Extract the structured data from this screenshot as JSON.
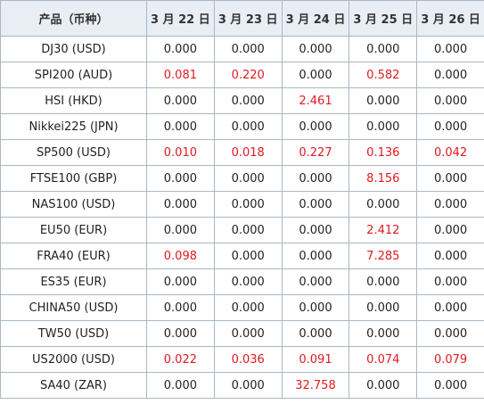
{
  "header": {
    "product": "产品（币种）",
    "dates": [
      "3 月 22 日",
      "3 月 23 日",
      "3 月 24 日",
      "3 月 25 日",
      "3 月 26 日"
    ]
  },
  "rows": [
    {
      "product": "DJ30 (USD)",
      "values": [
        "0.000",
        "0.000",
        "0.000",
        "0.000",
        "0.000"
      ]
    },
    {
      "product": "SPI200 (AUD)",
      "values": [
        "0.081",
        "0.220",
        "0.000",
        "0.582",
        "0.000"
      ]
    },
    {
      "product": "HSI (HKD)",
      "values": [
        "0.000",
        "0.000",
        "2.461",
        "0.000",
        "0.000"
      ]
    },
    {
      "product": "Nikkei225 (JPN)",
      "values": [
        "0.000",
        "0.000",
        "0.000",
        "0.000",
        "0.000"
      ]
    },
    {
      "product": "SP500 (USD)",
      "values": [
        "0.010",
        "0.018",
        "0.227",
        "0.136",
        "0.042"
      ]
    },
    {
      "product": "FTSE100 (GBP)",
      "values": [
        "0.000",
        "0.000",
        "0.000",
        "8.156",
        "0.000"
      ]
    },
    {
      "product": "NAS100 (USD)",
      "values": [
        "0.000",
        "0.000",
        "0.000",
        "0.000",
        "0.000"
      ]
    },
    {
      "product": "EU50 (EUR)",
      "values": [
        "0.000",
        "0.000",
        "0.000",
        "2.412",
        "0.000"
      ]
    },
    {
      "product": "FRA40 (EUR)",
      "values": [
        "0.098",
        "0.000",
        "0.000",
        "7.285",
        "0.000"
      ]
    },
    {
      "product": "ES35 (EUR)",
      "values": [
        "0.000",
        "0.000",
        "0.000",
        "0.000",
        "0.000"
      ]
    },
    {
      "product": "CHINA50 (USD)",
      "values": [
        "0.000",
        "0.000",
        "0.000",
        "0.000",
        "0.000"
      ]
    },
    {
      "product": "TW50 (USD)",
      "values": [
        "0.000",
        "0.000",
        "0.000",
        "0.000",
        "0.000"
      ]
    },
    {
      "product": "US2000 (USD)",
      "values": [
        "0.022",
        "0.036",
        "0.091",
        "0.074",
        "0.079"
      ]
    },
    {
      "product": "SA40 (ZAR)",
      "values": [
        "0.000",
        "0.000",
        "32.758",
        "0.000",
        "0.000"
      ]
    }
  ],
  "colors": {
    "positive_value": "#e0191f",
    "zero_value": "#222222",
    "header_background": "#e9eef5",
    "border": "#a9b7c6"
  }
}
